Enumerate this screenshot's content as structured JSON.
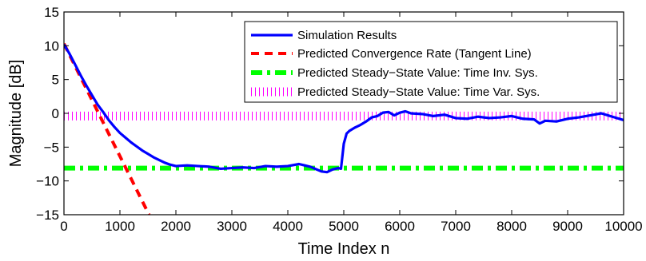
{
  "chart_data": {
    "type": "line",
    "xlabel": "Time Index n",
    "ylabel": "Magnitude [dB]",
    "xlim": [
      0,
      10000
    ],
    "ylim": [
      -15,
      15
    ],
    "xticks": [
      0,
      1000,
      2000,
      3000,
      4000,
      5000,
      6000,
      7000,
      8000,
      9000,
      10000
    ],
    "yticks": [
      -15,
      -10,
      -5,
      0,
      5,
      10,
      15
    ],
    "xtick_labels": [
      "0",
      "1000",
      "2000",
      "3000",
      "4000",
      "5000",
      "6000",
      "7000",
      "8000",
      "9000",
      "10000"
    ],
    "ytick_labels": [
      "−15",
      "−10",
      "−5",
      "0",
      "5",
      "10",
      "15"
    ],
    "grid": false,
    "legend_position": "top-right",
    "series": [
      {
        "name": "Simulation Results",
        "color": "#0000ff",
        "style": "solid",
        "x": [
          0,
          100,
          200,
          300,
          400,
          500,
          600,
          700,
          800,
          900,
          1000,
          1100,
          1200,
          1300,
          1400,
          1500,
          1600,
          1700,
          1800,
          1900,
          2000,
          2200,
          2400,
          2600,
          2800,
          3000,
          3200,
          3400,
          3600,
          3800,
          4000,
          4200,
          4400,
          4600,
          4700,
          4800,
          4900,
          4950,
          5000,
          5050,
          5100,
          5200,
          5300,
          5400,
          5500,
          5600,
          5700,
          5800,
          5900,
          6000,
          6100,
          6200,
          6400,
          6600,
          6800,
          7000,
          7200,
          7400,
          7600,
          7800,
          8000,
          8200,
          8400,
          8500,
          8600,
          8800,
          9000,
          9200,
          9400,
          9600,
          9800,
          10000
        ],
        "y": [
          10.2,
          8.8,
          7.2,
          5.6,
          4.1,
          2.7,
          1.3,
          0.2,
          -1.0,
          -2.0,
          -2.9,
          -3.6,
          -4.3,
          -4.9,
          -5.5,
          -6.0,
          -6.5,
          -6.9,
          -7.3,
          -7.6,
          -7.8,
          -7.7,
          -7.8,
          -7.9,
          -8.2,
          -8.1,
          -8.0,
          -8.1,
          -7.8,
          -7.9,
          -7.8,
          -7.5,
          -7.9,
          -8.6,
          -8.7,
          -8.3,
          -8.1,
          -8.2,
          -4.5,
          -3.0,
          -2.6,
          -2.1,
          -1.7,
          -1.2,
          -0.6,
          -0.4,
          0.1,
          0.2,
          -0.3,
          0.1,
          0.3,
          0.0,
          -0.1,
          -0.4,
          -0.2,
          -0.7,
          -0.8,
          -0.5,
          -0.7,
          -0.6,
          -0.4,
          -0.8,
          -0.9,
          -1.5,
          -1.1,
          -1.2,
          -0.8,
          -0.6,
          -0.3,
          0.0,
          -0.5,
          -1.0
        ]
      },
      {
        "name": "Predicted Convergence Rate (Tangent Line)",
        "color": "#ff0000",
        "style": "dashed",
        "x": [
          0,
          1520
        ],
        "y": [
          10.3,
          -15
        ]
      },
      {
        "name": "Predicted Steady−State Value: Time Inv. Sys.",
        "color": "#00ff00",
        "style": "dashdot",
        "x": [
          0,
          10000
        ],
        "y": [
          -8.1,
          -8.1
        ]
      },
      {
        "name": "Predicted Steady−State Value: Time Var. Sys.",
        "color": "#ff00ff",
        "style": "dotted",
        "x": [
          0,
          10000
        ],
        "y": [
          -0.4,
          -0.4
        ]
      }
    ]
  }
}
